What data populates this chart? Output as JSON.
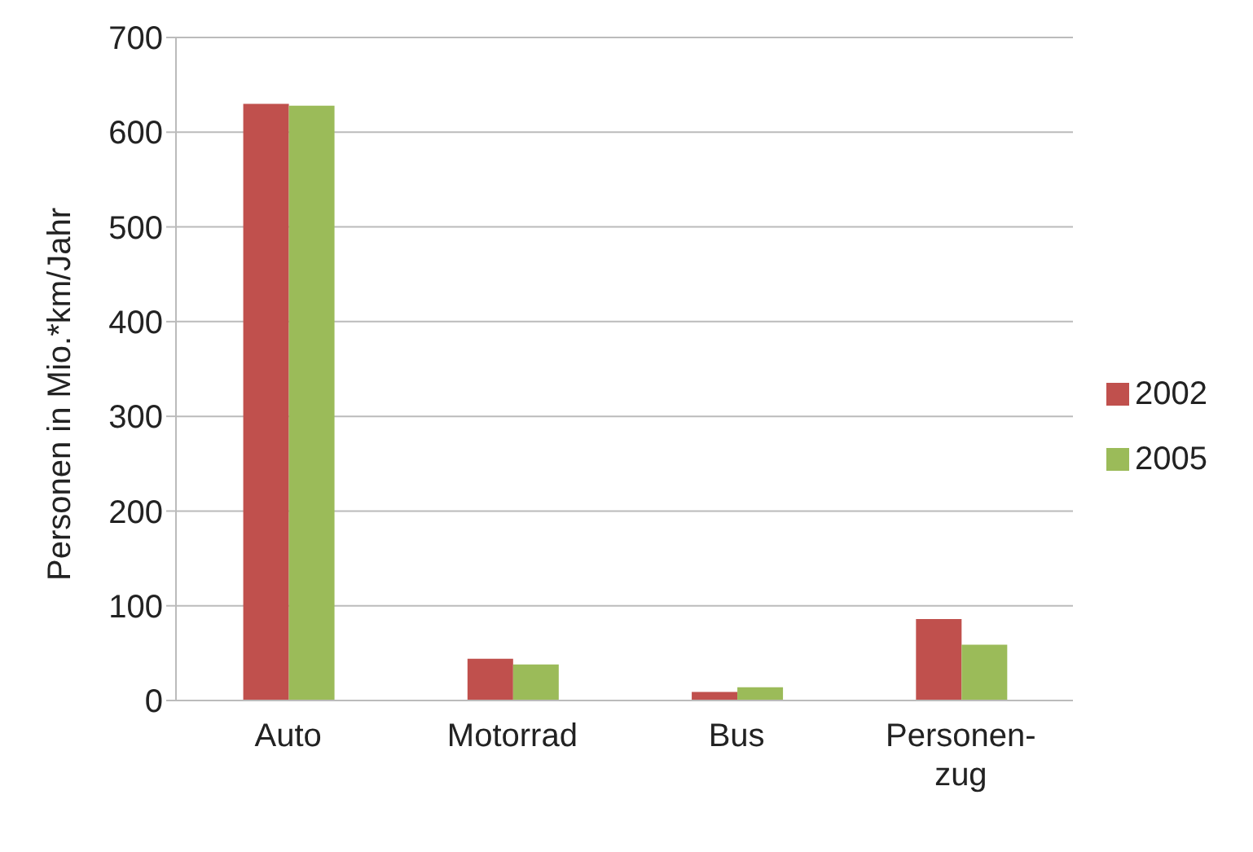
{
  "chart_data": {
    "type": "bar",
    "ylabel": "Personen in Mio.*km/Jahr",
    "categories": [
      "Auto",
      "Motorrad",
      "Bus",
      "Personen-zug"
    ],
    "series": [
      {
        "name": "2002",
        "color": "#c0504d",
        "values": [
          630,
          44,
          9,
          86
        ]
      },
      {
        "name": "2005",
        "color": "#9bbb59",
        "values": [
          628,
          38,
          14,
          59
        ]
      }
    ],
    "ylim": [
      0,
      700
    ],
    "yticks": [
      0,
      100,
      200,
      300,
      400,
      500,
      600,
      700
    ],
    "grid": "y",
    "legend": "right"
  }
}
